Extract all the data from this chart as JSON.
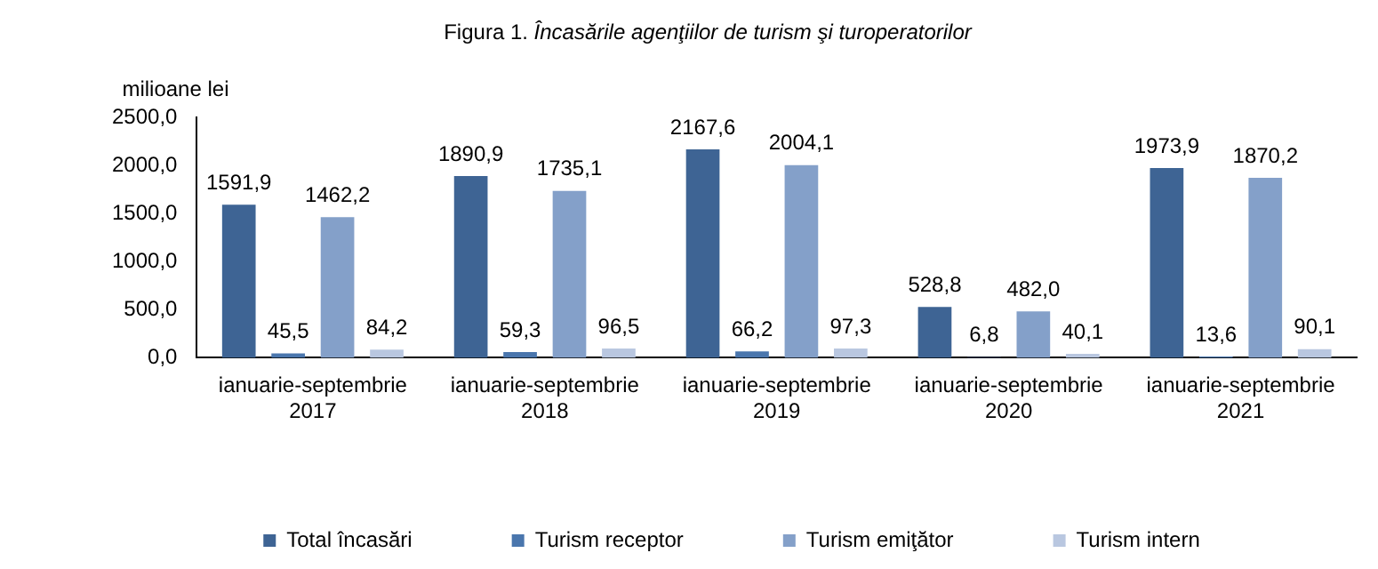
{
  "chart_data": {
    "type": "bar",
    "title": "Figura 1. Încasările agenţiilor de turism şi turoperatorilor",
    "ylabel": "milioane lei",
    "categories": [
      "ianuarie-septembrie 2017",
      "ianuarie-septembrie 2018",
      "ianuarie-septembrie 2019",
      "ianuarie-septembrie 2020",
      "ianuarie-septembrie 2021"
    ],
    "series": [
      {
        "name": "Total încasări",
        "color": "#3e6494",
        "values": [
          1591.9,
          1890.9,
          2167.6,
          528.8,
          1973.9
        ],
        "value_labels": [
          "1591,9",
          "1890,9",
          "2167,6",
          "528,8",
          "1973,9"
        ]
      },
      {
        "name": "Turism receptor",
        "color": "#4a76ad",
        "values": [
          45.5,
          59.3,
          66.2,
          6.8,
          13.6
        ],
        "value_labels": [
          "45,5",
          "59,3",
          "66,2",
          "6,8",
          "13,6"
        ]
      },
      {
        "name": "Turism emiţător",
        "color": "#84a0c9",
        "values": [
          1462.2,
          1735.1,
          2004.1,
          482.0,
          1870.2
        ],
        "value_labels": [
          "1462,2",
          "1735,1",
          "2004,1",
          "482,0",
          "1870,2"
        ]
      },
      {
        "name": "Turism intern",
        "color": "#b9c7e0",
        "values": [
          84.2,
          96.5,
          97.3,
          40.1,
          90.1
        ],
        "value_labels": [
          "84,2",
          "96,5",
          "97,3",
          "40,1",
          "90,1"
        ]
      }
    ],
    "ylim": [
      0,
      2500
    ],
    "yticks": [
      {
        "value": 0,
        "label": "0,0"
      },
      {
        "value": 500,
        "label": "500,0"
      },
      {
        "value": 1000,
        "label": "1000,0"
      },
      {
        "value": 1500,
        "label": "1500,0"
      },
      {
        "value": 2000,
        "label": "2000,0"
      },
      {
        "value": 2500,
        "label": "2500,0"
      }
    ],
    "grid": false,
    "legend": "bottom"
  }
}
